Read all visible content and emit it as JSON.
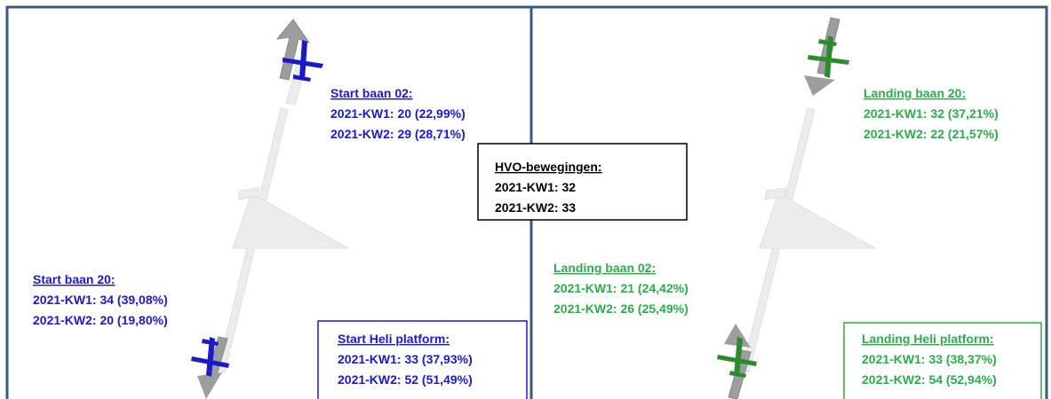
{
  "start": {
    "baan_02": {
      "title": "Start baan 02:",
      "lines": [
        "2021-KW1: 20 (22,99%)",
        "2021-KW2: 29 (28,71%)"
      ]
    },
    "baan_20": {
      "title": "Start baan 20:",
      "lines": [
        "2021-KW1: 34 (39,08%)",
        "2021-KW2: 20 (19,80%)"
      ]
    },
    "heli": {
      "title": "Start Heli platform:",
      "lines": [
        "2021-KW1: 33 (37,93%)",
        "2021-KW2: 52 (51,49%)"
      ]
    }
  },
  "hvo": {
    "title": "HVO-bewegingen:",
    "lines": [
      "2021-KW1: 32",
      "2021-KW2: 33"
    ]
  },
  "landing": {
    "baan_20": {
      "title": "Landing baan 20:",
      "lines": [
        "2021-KW1: 32 (37,21%)",
        "2021-KW2: 22 (21,57%)"
      ]
    },
    "baan_02": {
      "title": "Landing baan 02:",
      "lines": [
        "2021-KW1: 21 (24,42%)",
        "2021-KW2: 26 (25,49%)"
      ]
    },
    "heli": {
      "title": "Landing Heli platform:",
      "lines": [
        "2021-KW1: 33 (38,37%)",
        "2021-KW2: 54 (52,94%)"
      ]
    }
  }
}
